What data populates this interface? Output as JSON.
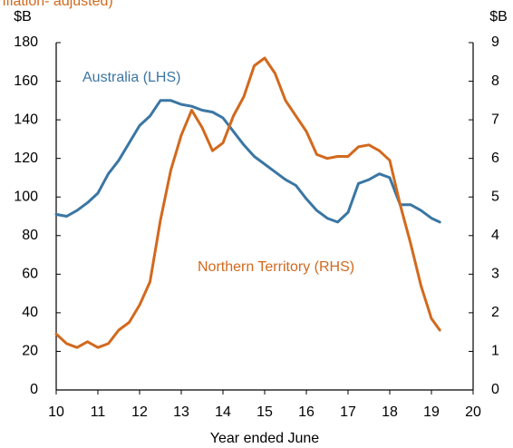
{
  "chart_data": {
    "type": "line",
    "subtitle": "inflation- adjusted)",
    "y_unit": "$B",
    "y2_unit": "$B",
    "xlabel": "Year ended June",
    "x": [
      10,
      10.25,
      10.5,
      10.75,
      11,
      11.25,
      11.5,
      11.75,
      12,
      12.25,
      12.5,
      12.75,
      13,
      13.25,
      13.5,
      13.75,
      14,
      14.25,
      14.5,
      14.75,
      15,
      15.25,
      15.5,
      15.75,
      16,
      16.25,
      16.5,
      16.75,
      17,
      17.25,
      17.5,
      17.75,
      18,
      18.25,
      18.5,
      18.75,
      19,
      19.2
    ],
    "series": [
      {
        "name": "Australia (LHS)",
        "color": "#3b76a3",
        "axis": "y",
        "values": [
          91,
          90,
          93,
          97,
          102,
          112,
          119,
          128,
          137,
          142,
          150,
          150,
          148,
          147,
          145,
          144,
          141,
          134,
          127,
          121,
          117,
          113,
          109,
          106,
          99,
          93,
          89,
          87,
          92,
          107,
          109,
          112,
          110,
          96,
          96,
          93,
          89,
          87
        ]
      },
      {
        "name": "Northern Territory (RHS)",
        "color": "#d2691e",
        "axis": "y2",
        "values": [
          1.45,
          1.2,
          1.1,
          1.25,
          1.1,
          1.2,
          1.55,
          1.75,
          2.2,
          2.8,
          4.4,
          5.7,
          6.6,
          7.25,
          6.8,
          6.2,
          6.4,
          7.1,
          7.6,
          8.4,
          8.6,
          8.2,
          7.5,
          7.1,
          6.7,
          6.1,
          6.0,
          6.05,
          6.05,
          6.3,
          6.35,
          6.2,
          5.95,
          4.8,
          3.8,
          2.7,
          1.85,
          1.55
        ]
      }
    ],
    "xlim": [
      10,
      20
    ],
    "xticks": [
      10,
      11,
      12,
      13,
      14,
      15,
      16,
      17,
      18,
      19,
      20
    ],
    "ylim": [
      0,
      180
    ],
    "yticks": [
      0,
      20,
      40,
      60,
      80,
      100,
      120,
      140,
      160,
      180
    ],
    "y2lim": [
      0,
      9
    ],
    "y2ticks": [
      0,
      1,
      2,
      3,
      4,
      5,
      6,
      7,
      8,
      9
    ]
  }
}
